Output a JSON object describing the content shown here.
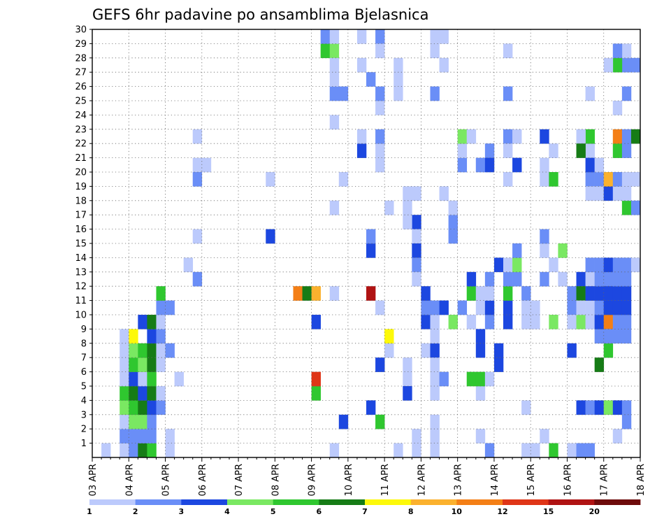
{
  "chart_data": {
    "type": "heatmap",
    "title": "GEFS 6hr padavine po ansamblima Bjelasnica",
    "xlabel": "",
    "ylabel": "",
    "x_tick_labels": [
      "03 APR",
      "04 APR",
      "05 APR",
      "06 APR",
      "07 APR",
      "08 APR",
      "09 APR",
      "10 APR",
      "11 APR",
      "12 APR",
      "13 APR",
      "14 APR",
      "15 APR",
      "16 APR",
      "17 APR",
      "18 APR"
    ],
    "y_tick_labels": [
      "1",
      "2",
      "3",
      "4",
      "5",
      "6",
      "7",
      "8",
      "9",
      "10",
      "11",
      "12",
      "13",
      "14",
      "15",
      "16",
      "17",
      "18",
      "19",
      "20",
      "21",
      "22",
      "23",
      "24",
      "25",
      "26",
      "27",
      "28",
      "29",
      "30"
    ],
    "time_steps_per_day": 4,
    "n_time_steps": 60,
    "n_members": 30,
    "grid": true,
    "colorbar": {
      "levels": [
        "1",
        "2",
        "3",
        "4",
        "5",
        "6",
        "7",
        "8",
        "10",
        "12",
        "15",
        "20"
      ],
      "colors": [
        "#bccafc",
        "#6a8ef7",
        "#1c47e0",
        "#7ae862",
        "#2fc72f",
        "#167c16",
        "#fdf90a",
        "#fbb12e",
        "#f47f16",
        "#df3517",
        "#b01313",
        "#6e0b0b"
      ]
    },
    "cells": [
      [
        1,
        4,
        1
      ],
      [
        2,
        4,
        2
      ],
      [
        3,
        4,
        1
      ],
      [
        4,
        4,
        4
      ],
      [
        5,
        4,
        5
      ],
      [
        6,
        4,
        1
      ],
      [
        7,
        4,
        1
      ],
      [
        8,
        4,
        1
      ],
      [
        9,
        4,
        1
      ],
      [
        1,
        5,
        2
      ],
      [
        2,
        5,
        2
      ],
      [
        3,
        5,
        4
      ],
      [
        4,
        5,
        5
      ],
      [
        5,
        5,
        6
      ],
      [
        6,
        5,
        3
      ],
      [
        7,
        5,
        5
      ],
      [
        8,
        5,
        4
      ],
      [
        9,
        5,
        7
      ],
      [
        1,
        6,
        6
      ],
      [
        2,
        6,
        2
      ],
      [
        3,
        6,
        4
      ],
      [
        4,
        6,
        6
      ],
      [
        5,
        6,
        3
      ],
      [
        6,
        6,
        1
      ],
      [
        7,
        6,
        4
      ],
      [
        8,
        6,
        5
      ],
      [
        10,
        6,
        3
      ],
      [
        1,
        7,
        5
      ],
      [
        2,
        7,
        2
      ],
      [
        3,
        7,
        2
      ],
      [
        4,
        7,
        3
      ],
      [
        5,
        7,
        6
      ],
      [
        6,
        7,
        5
      ],
      [
        7,
        7,
        6
      ],
      [
        8,
        7,
        6
      ],
      [
        9,
        7,
        3
      ],
      [
        10,
        7,
        6
      ],
      [
        1,
        2,
        1
      ],
      [
        4,
        8,
        2
      ],
      [
        5,
        8,
        1
      ],
      [
        7,
        8,
        1
      ],
      [
        8,
        8,
        1
      ],
      [
        9,
        8,
        2
      ],
      [
        10,
        8,
        1
      ],
      [
        11,
        8,
        2
      ],
      [
        12,
        8,
        5
      ],
      [
        1,
        9,
        1
      ],
      [
        2,
        9,
        1
      ],
      [
        6,
        10,
        1
      ],
      [
        8,
        9,
        2
      ],
      [
        11,
        9,
        2
      ],
      [
        21,
        12,
        1
      ],
      [
        14,
        11,
        1
      ],
      [
        21,
        13,
        1
      ],
      [
        20,
        12,
        2
      ],
      [
        13,
        12,
        2
      ],
      [
        16,
        12,
        1
      ],
      [
        23,
        12,
        1
      ],
      [
        16,
        20,
        3
      ],
      [
        20,
        20,
        1
      ],
      [
        12,
        23,
        9
      ],
      [
        12,
        24,
        6
      ],
      [
        12,
        25,
        8
      ],
      [
        10,
        25,
        3
      ],
      [
        5,
        25,
        5
      ],
      [
        6,
        25,
        10
      ],
      [
        29,
        26,
        5
      ],
      [
        30,
        26,
        2
      ],
      [
        1,
        27,
        1
      ],
      [
        29,
        27,
        4
      ],
      [
        26,
        27,
        2
      ],
      [
        24,
        27,
        1
      ],
      [
        18,
        27,
        1
      ],
      [
        28,
        27,
        1
      ],
      [
        12,
        27,
        1
      ],
      [
        30,
        27,
        1
      ],
      [
        27,
        27,
        1
      ],
      [
        3,
        28,
        3
      ],
      [
        20,
        28,
        1
      ],
      [
        26,
        28,
        2
      ],
      [
        22,
        30,
        3
      ],
      [
        23,
        30,
        1
      ],
      [
        27,
        31,
        2
      ],
      [
        4,
        31,
        3
      ],
      [
        15,
        31,
        3
      ],
      [
        16,
        31,
        2
      ],
      [
        30,
        30,
        1
      ],
      [
        28,
        30,
        1
      ],
      [
        12,
        31,
        11
      ],
      [
        30,
        32,
        2
      ],
      [
        29,
        32,
        1
      ],
      [
        25,
        32,
        1
      ],
      [
        26,
        32,
        2
      ],
      [
        22,
        32,
        1
      ],
      [
        23,
        32,
        2
      ],
      [
        3,
        32,
        5
      ],
      [
        7,
        32,
        3
      ],
      [
        21,
        32,
        1
      ],
      [
        11,
        32,
        1
      ],
      [
        8,
        33,
        1
      ],
      [
        9,
        33,
        7
      ],
      [
        18,
        33,
        1
      ],
      [
        28,
        34,
        1
      ],
      [
        26,
        34,
        1
      ],
      [
        27,
        34,
        1
      ],
      [
        1,
        34,
        1
      ],
      [
        1,
        36,
        1
      ],
      [
        2,
        36,
        1
      ],
      [
        8,
        37,
        1
      ],
      [
        10,
        37,
        3
      ],
      [
        11,
        37,
        2
      ],
      [
        12,
        37,
        3
      ],
      [
        19,
        36,
        1
      ],
      [
        17,
        36,
        3
      ],
      [
        16,
        36,
        1
      ],
      [
        15,
        36,
        3
      ],
      [
        14,
        36,
        2
      ],
      [
        13,
        36,
        1
      ],
      [
        7,
        35,
        1
      ],
      [
        6,
        35,
        1
      ],
      [
        5,
        35,
        3
      ],
      [
        18,
        35,
        1
      ],
      [
        19,
        35,
        1
      ],
      [
        17,
        35,
        1
      ],
      [
        1,
        38,
        1
      ],
      [
        2,
        38,
        1
      ],
      [
        8,
        38,
        3
      ],
      [
        9,
        38,
        1
      ],
      [
        5,
        38,
        1
      ],
      [
        6,
        38,
        1
      ],
      [
        7,
        38,
        1
      ],
      [
        10,
        38,
        1
      ],
      [
        11,
        38,
        2
      ],
      [
        26,
        38,
        2
      ],
      [
        29,
        38,
        1
      ],
      [
        30,
        38,
        1
      ],
      [
        3,
        38,
        1
      ],
      [
        6,
        39,
        2
      ],
      [
        11,
        39,
        3
      ],
      [
        19,
        39,
        1
      ],
      [
        28,
        39,
        1
      ],
      [
        30,
        39,
        1
      ],
      [
        16,
        40,
        2
      ],
      [
        17,
        40,
        2
      ],
      [
        18,
        40,
        1
      ],
      [
        10,
        40,
        4
      ],
      [
        12,
        42,
        5
      ],
      [
        10,
        42,
        1
      ],
      [
        11,
        41,
        2
      ],
      [
        21,
        41,
        2
      ],
      [
        22,
        41,
        1
      ],
      [
        23,
        41,
        4
      ],
      [
        23,
        42,
        1
      ],
      [
        11,
        43,
        1
      ],
      [
        5,
        43,
        1
      ],
      [
        6,
        42,
        5
      ],
      [
        6,
        43,
        5
      ],
      [
        13,
        42,
        3
      ],
      [
        12,
        43,
        1
      ],
      [
        21,
        43,
        2
      ],
      [
        2,
        43,
        1
      ],
      [
        22,
        44,
        2
      ],
      [
        8,
        43,
        3
      ],
      [
        9,
        43,
        3
      ],
      [
        6,
        44,
        1
      ],
      [
        1,
        44,
        2
      ],
      [
        10,
        44,
        2
      ],
      [
        11,
        44,
        3
      ],
      [
        12,
        44,
        1
      ],
      [
        13,
        44,
        2
      ],
      [
        21,
        44,
        3
      ],
      [
        7,
        45,
        3
      ],
      [
        8,
        45,
        3
      ],
      [
        14,
        45,
        3
      ],
      [
        11,
        46,
        3
      ],
      [
        10,
        46,
        3
      ],
      [
        12,
        46,
        5
      ],
      [
        13,
        46,
        2
      ],
      [
        14,
        46,
        1
      ],
      [
        20,
        46,
        1
      ],
      [
        23,
        46,
        2
      ],
      [
        26,
        46,
        2
      ],
      [
        22,
        46,
        1
      ],
      [
        13,
        47,
        2
      ],
      [
        14,
        47,
        4
      ],
      [
        15,
        47,
        2
      ],
      [
        21,
        47,
        3
      ],
      [
        23,
        47,
        1
      ],
      [
        29,
        46,
        1
      ],
      [
        1,
        48,
        1
      ],
      [
        4,
        48,
        1
      ],
      [
        12,
        48,
        2
      ],
      [
        10,
        48,
        1
      ],
      [
        11,
        48,
        1
      ],
      [
        13,
        50,
        2
      ],
      [
        11,
        49,
        1
      ],
      [
        10,
        49,
        1
      ],
      [
        15,
        50,
        1
      ],
      [
        16,
        50,
        2
      ],
      [
        20,
        50,
        1
      ],
      [
        21,
        50,
        1
      ],
      [
        23,
        50,
        3
      ],
      [
        1,
        49,
        1
      ],
      [
        2,
        50,
        1
      ],
      [
        1,
        51,
        5
      ],
      [
        10,
        51,
        4
      ],
      [
        20,
        51,
        5
      ],
      [
        22,
        51,
        1
      ],
      [
        14,
        51,
        1
      ],
      [
        1,
        53,
        1
      ],
      [
        11,
        53,
        2
      ],
      [
        12,
        53,
        2
      ],
      [
        13,
        52,
        1
      ],
      [
        15,
        52,
        4
      ],
      [
        10,
        53,
        1
      ],
      [
        1,
        54,
        2
      ],
      [
        4,
        54,
        3
      ],
      [
        8,
        53,
        3
      ],
      [
        13,
        54,
        3
      ],
      [
        12,
        54,
        6
      ],
      [
        10,
        54,
        4
      ],
      [
        11,
        54,
        1
      ],
      [
        1,
        55,
        2
      ],
      [
        4,
        55,
        2
      ],
      [
        22,
        55,
        1
      ],
      [
        23,
        55,
        5
      ],
      [
        26,
        55,
        1
      ],
      [
        20,
        55,
        2
      ],
      [
        23,
        54,
        1
      ],
      [
        13,
        55,
        1
      ],
      [
        14,
        55,
        2
      ],
      [
        10,
        55,
        1
      ],
      [
        11,
        55,
        1
      ],
      [
        12,
        55,
        3
      ],
      [
        21,
        55,
        3
      ],
      [
        22,
        54,
        6
      ],
      [
        19,
        55,
        1
      ],
      [
        9,
        56,
        2
      ],
      [
        10,
        56,
        3
      ],
      [
        11,
        56,
        2
      ],
      [
        12,
        56,
        3
      ],
      [
        13,
        56,
        2
      ],
      [
        14,
        56,
        2
      ],
      [
        4,
        56,
        3
      ],
      [
        7,
        56,
        6
      ],
      [
        20,
        56,
        2
      ],
      [
        21,
        56,
        1
      ],
      [
        19,
        56,
        1
      ],
      [
        10,
        57,
        9
      ],
      [
        4,
        57,
        4
      ],
      [
        8,
        57,
        5
      ],
      [
        13,
        57,
        2
      ],
      [
        19,
        57,
        3
      ],
      [
        20,
        57,
        8
      ],
      [
        12,
        57,
        3
      ],
      [
        11,
        57,
        3
      ],
      [
        14,
        57,
        3
      ],
      [
        4,
        58,
        3
      ],
      [
        9,
        58,
        2
      ],
      [
        10,
        58,
        2
      ],
      [
        11,
        58,
        3
      ],
      [
        12,
        58,
        3
      ],
      [
        13,
        58,
        2
      ],
      [
        14,
        58,
        2
      ],
      [
        19,
        58,
        1
      ],
      [
        20,
        58,
        2
      ],
      [
        22,
        58,
        5
      ],
      [
        23,
        58,
        9
      ],
      [
        25,
        58,
        1
      ],
      [
        4,
        59,
        2
      ],
      [
        9,
        59,
        2
      ],
      [
        10,
        59,
        2
      ],
      [
        11,
        59,
        3
      ],
      [
        12,
        59,
        3
      ],
      [
        13,
        59,
        2
      ],
      [
        14,
        59,
        2
      ],
      [
        18,
        59,
        5
      ],
      [
        22,
        59,
        2
      ],
      [
        23,
        59,
        2
      ],
      [
        28,
        59,
        2
      ],
      [
        26,
        59,
        2
      ],
      [
        19,
        59,
        1
      ],
      [
        20,
        59,
        1
      ],
      [
        29,
        59,
        1
      ],
      [
        28,
        58,
        5
      ],
      [
        28,
        57,
        1
      ],
      [
        29,
        58,
        2
      ],
      [
        3,
        59,
        2
      ],
      [
        2,
        58,
        1
      ],
      [
        9,
        57,
        2
      ],
      [
        28,
        60,
        2
      ],
      [
        23,
        60,
        6
      ],
      [
        18,
        60,
        2
      ],
      [
        20,
        60,
        1
      ],
      [
        14,
        60,
        1
      ]
    ]
  }
}
